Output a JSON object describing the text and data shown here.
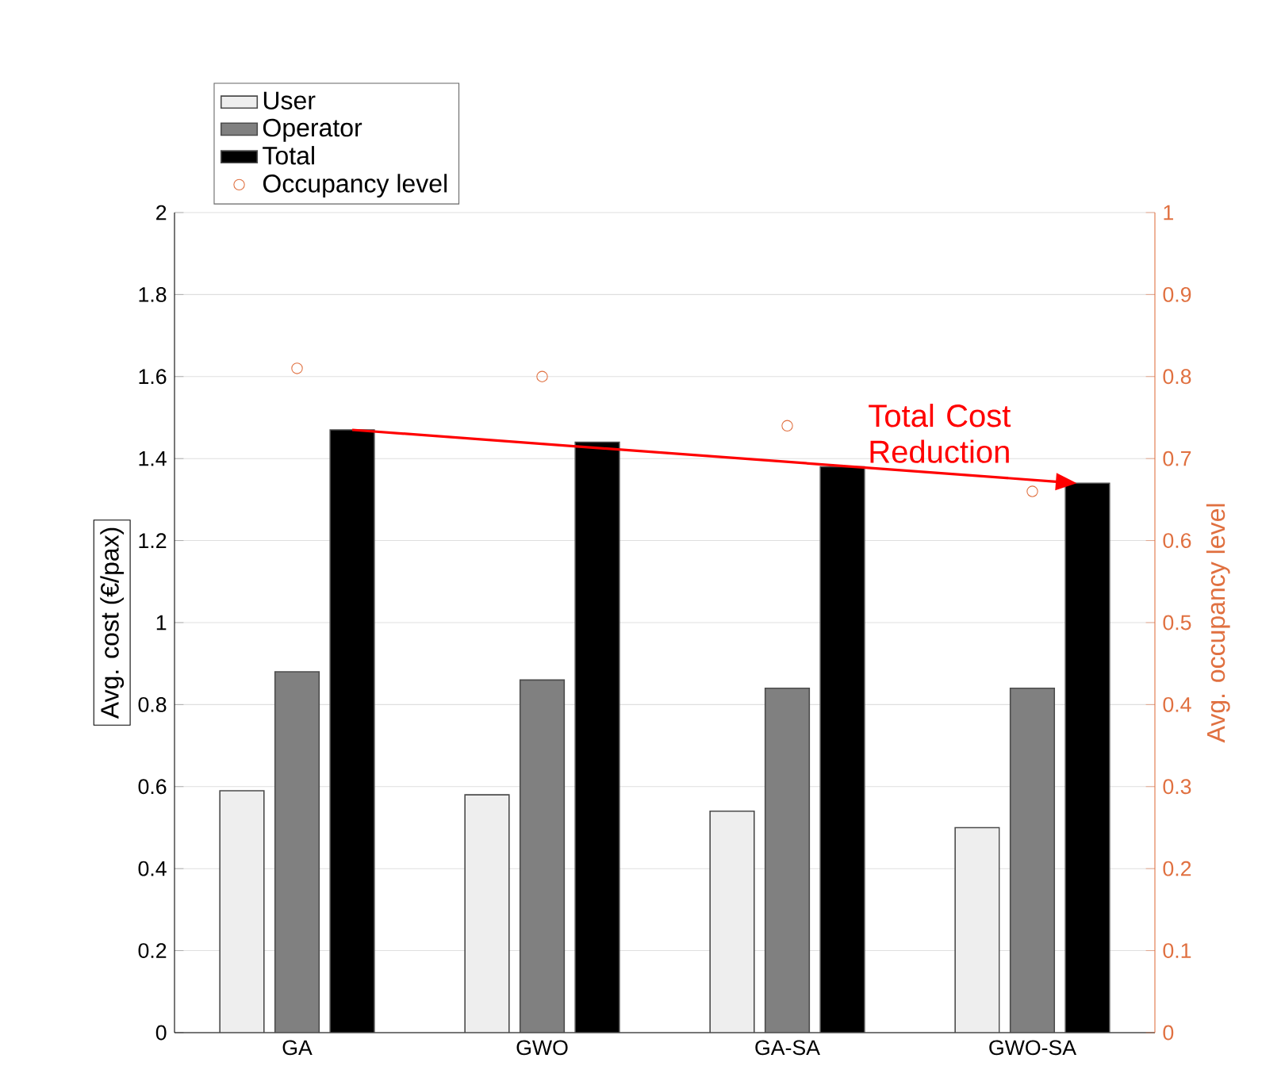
{
  "chart_data": {
    "type": "bar",
    "categories": [
      "GA",
      "GWO",
      "GA-SA",
      "GWO-SA"
    ],
    "series": [
      {
        "name": "User",
        "color": "#eeeeee",
        "values": [
          0.59,
          0.58,
          0.54,
          0.5
        ]
      },
      {
        "name": "Operator",
        "color": "#808080",
        "values": [
          0.88,
          0.86,
          0.84,
          0.84
        ]
      },
      {
        "name": "Total",
        "color": "#000000",
        "values": [
          1.47,
          1.44,
          1.38,
          1.34
        ]
      },
      {
        "name": "Occupancy level",
        "type": "scatter",
        "axis": "y2",
        "marker": "circle",
        "color": "#e07040",
        "values": [
          0.81,
          0.8,
          0.74,
          0.66
        ]
      }
    ],
    "ylabel": "Avg. cost (€/pax)",
    "y2label": "Avg. occupancy level",
    "ylim": [
      0,
      2
    ],
    "yticks": [
      0,
      0.2,
      0.4,
      0.6,
      0.8,
      1,
      1.2,
      1.4,
      1.6,
      1.8,
      2
    ],
    "y2lim": [
      0,
      1
    ],
    "y2ticks": [
      0,
      0.1,
      0.2,
      0.3,
      0.4,
      0.5,
      0.6,
      0.7,
      0.8,
      0.9,
      1
    ],
    "grid": "y",
    "legend": "top left",
    "annotations": [
      {
        "text": "Total Cost Reduction",
        "x": "GWO-SA",
        "y": 1.34
      }
    ]
  }
}
